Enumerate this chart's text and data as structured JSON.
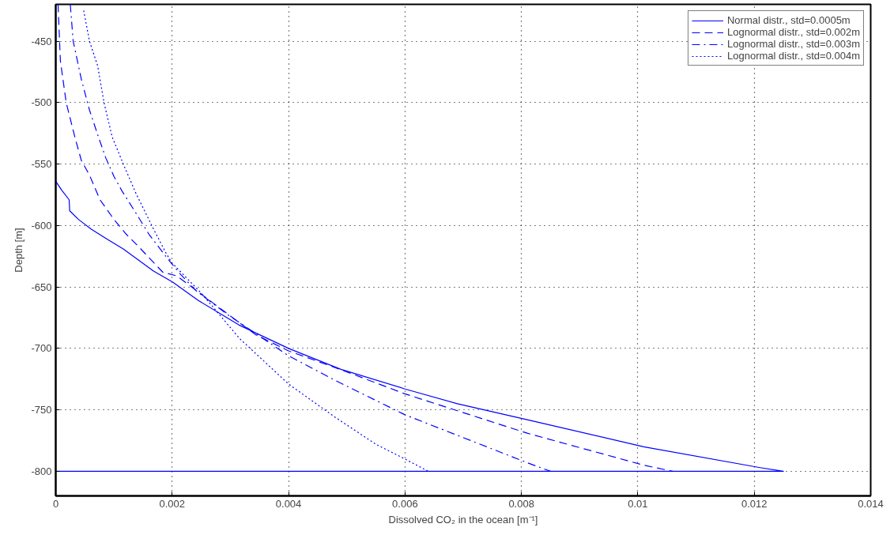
{
  "chart_data": {
    "type": "line",
    "xlabel": "Dissolved CO₂ in the ocean [m⁻¹]",
    "ylabel": "Depth [m]",
    "xlim": [
      0,
      0.014
    ],
    "ylim": [
      -820,
      -420
    ],
    "xticks": [
      0,
      0.002,
      0.004,
      0.006,
      0.008,
      0.01,
      0.012,
      0.014
    ],
    "yticks": [
      -800,
      -750,
      -700,
      -650,
      -600,
      -550,
      -500,
      -450
    ],
    "grid": true,
    "legend": "top right",
    "series": [
      {
        "name": "Normal distr., std=0.0005m",
        "color": "#0000ff",
        "line_style": "solid",
        "x": [
          0,
          0,
          0.0001,
          0.00023,
          0.00024,
          0.00039,
          0.00061,
          0.00088,
          0.00116,
          0.00142,
          0.00168,
          0.00201,
          0.00245,
          0.00315,
          0.004,
          0.0049,
          0.006,
          0.0069,
          0.0081,
          0.0101,
          0.0121,
          0.0125,
          0
        ],
        "values": [
          -420,
          -564,
          -571,
          -579,
          -588,
          -595,
          -603,
          -611,
          -619,
          -628,
          -637,
          -646,
          -661,
          -681,
          -700,
          -717,
          -733,
          -745,
          -758,
          -780,
          -797,
          -800,
          -800
        ]
      },
      {
        "name": "Lognormal distr., std=0.002m",
        "color": "#0000ff",
        "line_style": "dashed",
        "x": [
          4e-05,
          8e-05,
          0.00018,
          0.00034,
          0.00044,
          0.00058,
          0.00076,
          0.001,
          0.00121,
          0.00142,
          0.00184,
          0.00208,
          0.0027,
          0.00344,
          0.004,
          0.00494,
          0.006,
          0.0081,
          0.0101,
          0.0106
        ],
        "values": [
          -420,
          -466,
          -500,
          -530,
          -547,
          -559,
          -579,
          -595,
          -607,
          -617,
          -638,
          -641,
          -663,
          -689,
          -702,
          -718,
          -737,
          -769,
          -795,
          -800
        ]
      },
      {
        "name": "Lognormal distr., std=0.003m",
        "color": "#0000ff",
        "line_style": "dashdot",
        "x": [
          0.00025,
          0.0003,
          0.00044,
          0.00058,
          0.00072,
          0.00086,
          0.001,
          0.00114,
          0.00138,
          0.0016,
          0.00189,
          0.00213,
          0.00241,
          0.00297,
          0.00372,
          0.004,
          0.0048,
          0.006,
          0.0081,
          0.0085
        ],
        "values": [
          -420,
          -450,
          -481,
          -506,
          -526,
          -545,
          -560,
          -572,
          -590,
          -607,
          -625,
          -639,
          -653,
          -673,
          -697,
          -706,
          -726,
          -754,
          -793,
          -800
        ]
      },
      {
        "name": "Lognormal distr., std=0.004m",
        "color": "#0000ff",
        "line_style": "dotted",
        "x": [
          0.00048,
          0.00058,
          0.00072,
          0.00083,
          0.00097,
          0.00117,
          0.00138,
          0.00166,
          0.00189,
          0.00199,
          0.0025,
          0.00316,
          0.004,
          0.0048,
          0.0055,
          0.006,
          0.0064
        ],
        "values": [
          -425,
          -450,
          -470,
          -500,
          -528,
          -551,
          -574,
          -601,
          -622,
          -630,
          -655,
          -692,
          -729,
          -756,
          -778,
          -790,
          -800
        ]
      }
    ]
  }
}
